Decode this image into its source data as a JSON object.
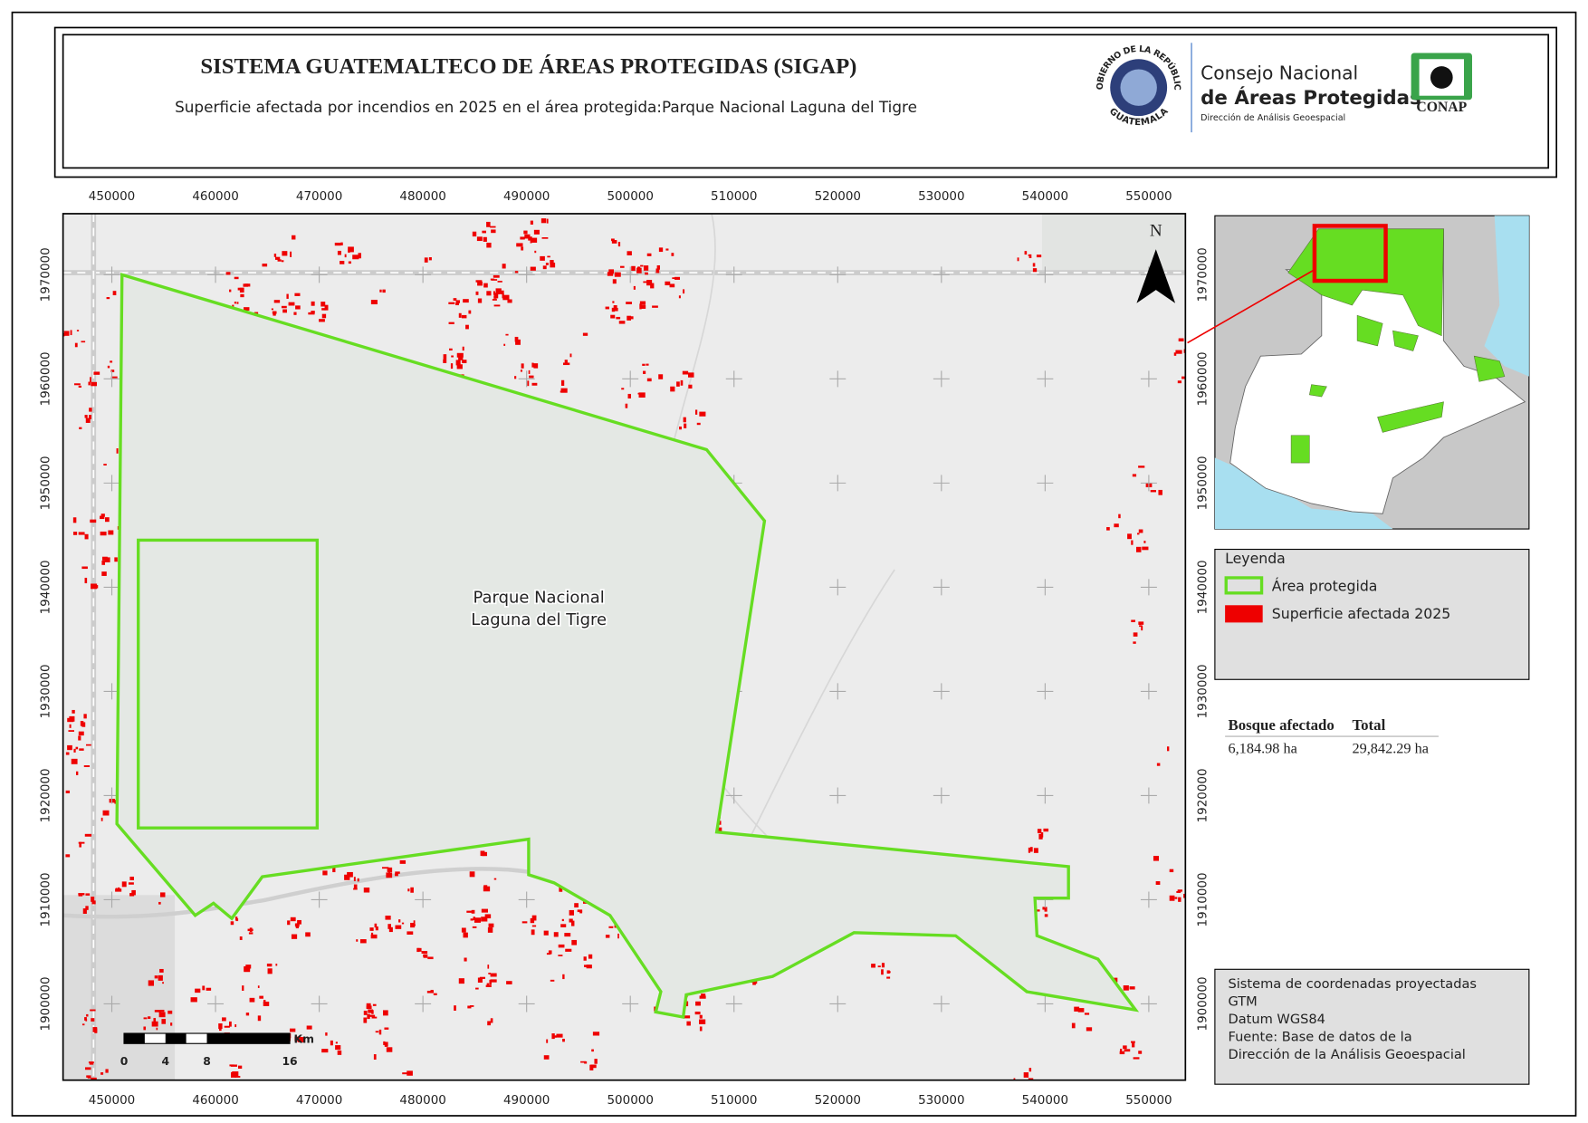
{
  "header": {
    "title": "SISTEMA GUATEMALTECO DE ÁREAS PROTEGIDAS  (SIGAP)",
    "subtitle": "Superficie afectada por incendios en 2025 en el área protegida:Parque Nacional Laguna del Tigre"
  },
  "logo": {
    "seal_top": "GOBIERNO DE LA REPÚBLICA",
    "seal_bottom": "GUATEMALA",
    "org_line1": "Consejo Nacional",
    "org_line2": "de Áreas Protegidas",
    "org_line3": "Dirección de Análisis Geoespacial",
    "badge": "CONAP"
  },
  "map": {
    "x_ticks": [
      450000,
      460000,
      470000,
      480000,
      490000,
      500000,
      510000,
      520000,
      530000,
      540000,
      550000
    ],
    "y_ticks": [
      1900000,
      1910000,
      1920000,
      1930000,
      1940000,
      1950000,
      1960000,
      1970000
    ],
    "north": "N",
    "park_label": [
      "Parque Nacional",
      "Laguna del Tigre"
    ],
    "scale_bar": {
      "labels": [
        0,
        4,
        8,
        16
      ],
      "unit": "Km"
    }
  },
  "legend": {
    "title": "Leyenda",
    "items": [
      {
        "label": "Área protegida",
        "color": "#66dd22"
      },
      {
        "label": "Superficie afectada 2025",
        "color": "#ee0000"
      }
    ]
  },
  "table": {
    "headers": [
      "Bosque afectado",
      "Total"
    ],
    "rows": [
      [
        "6,184.98 ha",
        "29,842.29 ha"
      ]
    ]
  },
  "info": {
    "lines": [
      "Sistema de coordenadas proyectadas",
      "GTM",
      "Datum WGS84",
      "Fuente: Base de datos de la",
      "Dirección de la Análisis Geoespacial"
    ]
  }
}
